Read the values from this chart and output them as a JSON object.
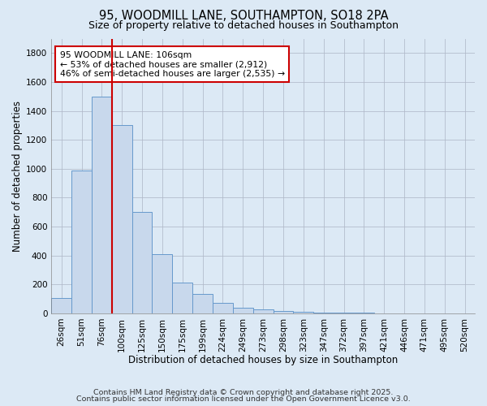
{
  "title1": "95, WOODMILL LANE, SOUTHAMPTON, SO18 2PA",
  "title2": "Size of property relative to detached houses in Southampton",
  "xlabel": "Distribution of detached houses by size in Southampton",
  "ylabel": "Number of detached properties",
  "categories": [
    "26sqm",
    "51sqm",
    "76sqm",
    "100sqm",
    "125sqm",
    "150sqm",
    "175sqm",
    "199sqm",
    "224sqm",
    "249sqm",
    "273sqm",
    "298sqm",
    "323sqm",
    "347sqm",
    "372sqm",
    "397sqm",
    "421sqm",
    "446sqm",
    "471sqm",
    "495sqm",
    "520sqm"
  ],
  "values": [
    105,
    990,
    1500,
    1300,
    700,
    410,
    210,
    135,
    70,
    40,
    25,
    15,
    10,
    5,
    3,
    2,
    1,
    1,
    0,
    0,
    0
  ],
  "bar_color": "#c8d8ec",
  "bar_edge_color": "#6699cc",
  "bar_linewidth": 0.7,
  "redline_index": 3.0,
  "annotation_text": "95 WOODMILL LANE: 106sqm\n← 53% of detached houses are smaller (2,912)\n46% of semi-detached houses are larger (2,535) →",
  "annotation_box_color": "#ffffff",
  "annotation_box_edge_color": "#cc0000",
  "background_color": "#dce9f5",
  "plot_background": "#dce9f5",
  "footer1": "Contains HM Land Registry data © Crown copyright and database right 2025.",
  "footer2": "Contains public sector information licensed under the Open Government Licence v3.0.",
  "ylim": [
    0,
    1900
  ],
  "yticks": [
    0,
    200,
    400,
    600,
    800,
    1000,
    1200,
    1400,
    1600,
    1800
  ],
  "grid_color": "#b0b8c8",
  "title1_fontsize": 10.5,
  "title2_fontsize": 9,
  "axis_label_fontsize": 8.5,
  "tick_fontsize": 7.5,
  "footer_fontsize": 6.8,
  "annot_fontsize": 7.8
}
